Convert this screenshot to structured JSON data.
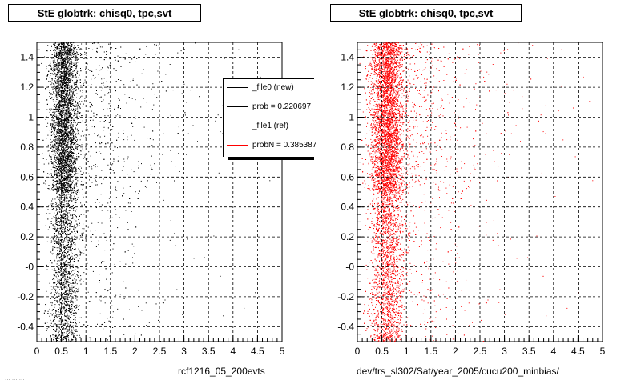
{
  "pads": [
    {
      "title": "StE globtrk: chisq0, tpc,svt",
      "xcaption": "rcf1216_05_200evts"
    },
    {
      "title": "StE globtrk: chisq0, tpc,svt",
      "xcaption": "dev/trs_sl302/Sat/year_2005/cucu200_minbias/"
    }
  ],
  "legend": {
    "entries": [
      {
        "label": "_file0 (new)",
        "color": "#000000"
      },
      {
        "label": "prob = 0.220697",
        "color": "#000000"
      },
      {
        "label": "_file1 (ref)",
        "color": "#ff0000"
      },
      {
        "label": "probN = 0.385387",
        "color": "#ff0000"
      }
    ]
  },
  "footer_text": "... ... ...",
  "chart_data": [
    {
      "type": "scatter",
      "title": "StE globtrk: chisq0, tpc,svt",
      "xlabel": "rcf1216_05_200evts",
      "ylabel": "",
      "xlim": [
        0,
        5
      ],
      "ylim": [
        -0.5,
        1.5
      ],
      "grid": true,
      "legend_position": "top-right",
      "xticks": [
        "0",
        "0.5",
        "1",
        "1.5",
        "2",
        "2.5",
        "3",
        "3.5",
        "4",
        "4.5",
        "5"
      ],
      "yticks": [
        "-0.4",
        "-0.2",
        "-0",
        "0.2",
        "0.4",
        "0.6",
        "0.8",
        "1",
        "1.2",
        "1.4"
      ],
      "series": [
        {
          "name": "_file0 (new)",
          "color": "#000000",
          "density_profile": {
            "x_peak": 0.55,
            "x_core_width": 0.25,
            "x_tail_extent": 5.0,
            "y_dense_band": [
              0.5,
              1.5
            ],
            "y_sparse_band": [
              -0.5,
              0.5
            ]
          }
        }
      ]
    },
    {
      "type": "scatter",
      "title": "StE globtrk: chisq0, tpc,svt",
      "xlabel": "dev/trs_sl302/Sat/year_2005/cucu200_minbias/",
      "ylabel": "",
      "xlim": [
        0,
        5
      ],
      "ylim": [
        -0.5,
        1.5
      ],
      "grid": true,
      "xticks": [
        "0",
        "0.5",
        "1",
        "1.5",
        "2",
        "2.5",
        "3",
        "3.5",
        "4",
        "4.5",
        "5"
      ],
      "yticks": [
        "-0.4",
        "-0.2",
        "-0",
        "0.2",
        "0.4",
        "0.6",
        "0.8",
        "1",
        "1.2",
        "1.4"
      ],
      "series": [
        {
          "name": "_file1 (ref)",
          "color": "#ff0000",
          "density_profile": {
            "x_peak": 0.6,
            "x_core_width": 0.3,
            "x_tail_extent": 5.0,
            "y_dense_band": [
              0.5,
              1.5
            ],
            "y_sparse_band": [
              -0.5,
              0.5
            ]
          }
        }
      ]
    }
  ]
}
